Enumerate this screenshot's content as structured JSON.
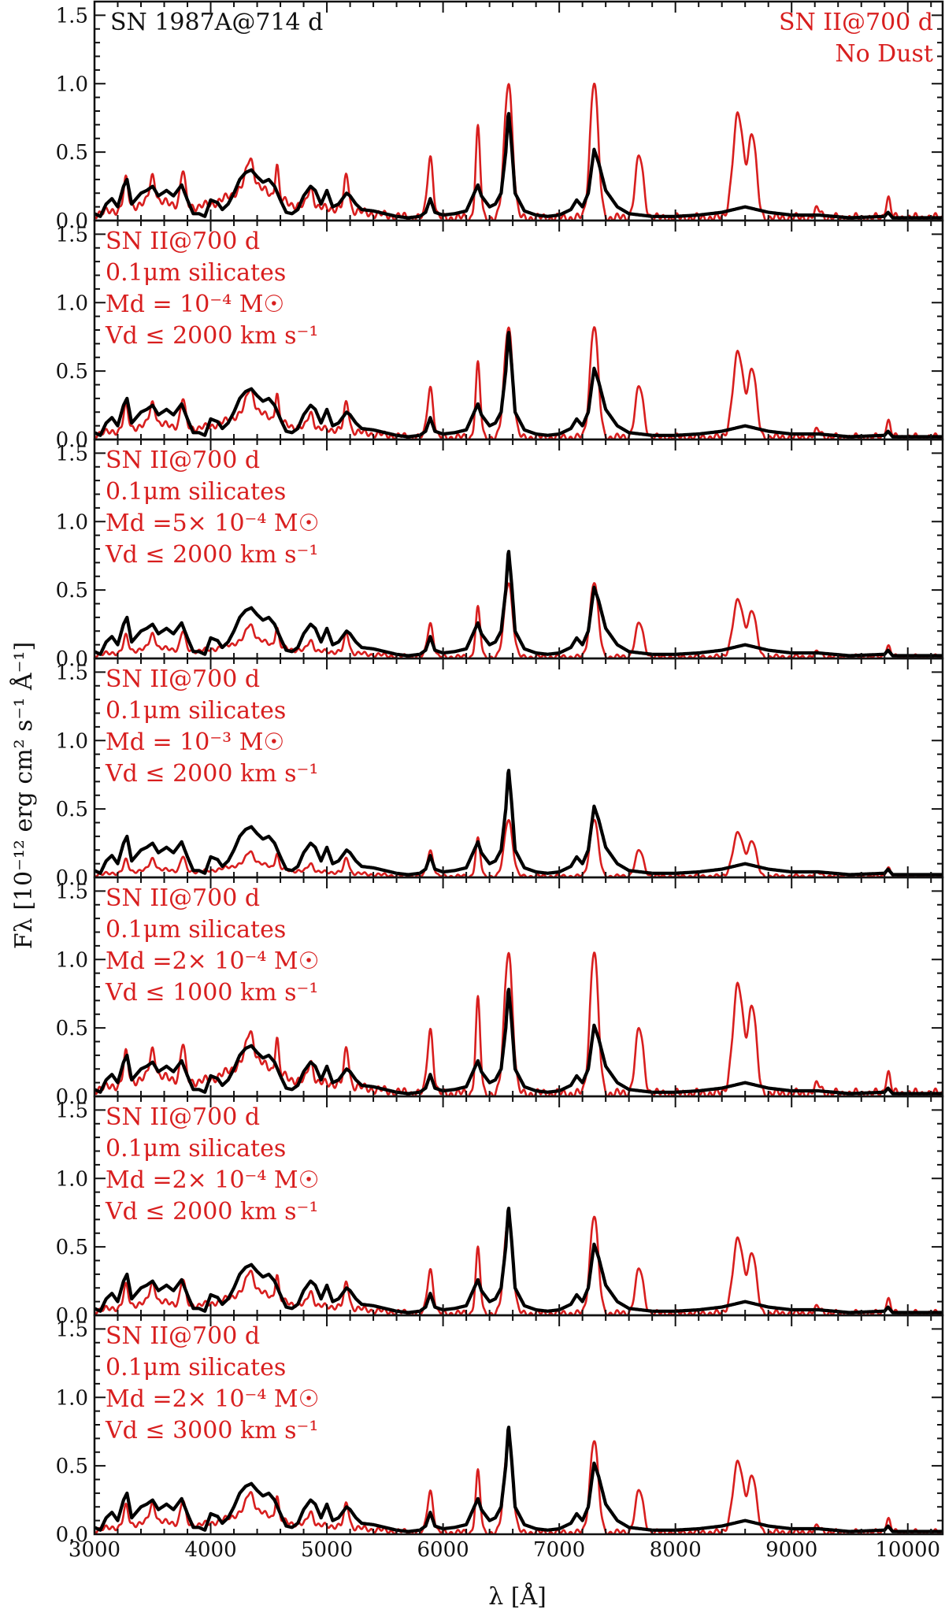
{
  "chart_data": {
    "type": "line",
    "layout": "7 vertically stacked panels sharing the x axis",
    "xlabel": "λ [Å]",
    "ylabel": "Fλ [10⁻¹² erg cm² s⁻¹ Å⁻¹]",
    "xlim": [
      3000,
      10300
    ],
    "ylim": [
      0,
      1.6
    ],
    "x_ticks": [
      3000,
      4000,
      5000,
      6000,
      7000,
      8000,
      9000,
      10000
    ],
    "y_tick_labels": [
      "0.0",
      "0.5",
      "1.0",
      "1.5"
    ],
    "colors": {
      "observed": "#000000",
      "model": "#d81e1e"
    },
    "observed_label": "SN 1987A@714 d",
    "model_baseline": [
      [
        3000,
        0.05
      ],
      [
        3100,
        0.06
      ],
      [
        3200,
        0.08
      ],
      [
        3300,
        0.1
      ],
      [
        3400,
        0.12
      ],
      [
        3500,
        0.13
      ],
      [
        3600,
        0.13
      ],
      [
        3700,
        0.12
      ],
      [
        3800,
        0.11
      ],
      [
        3900,
        0.1
      ],
      [
        4000,
        0.12
      ],
      [
        4100,
        0.15
      ],
      [
        4200,
        0.2
      ],
      [
        4300,
        0.26
      ],
      [
        4400,
        0.25
      ],
      [
        4500,
        0.2
      ],
      [
        4600,
        0.15
      ],
      [
        4700,
        0.12
      ],
      [
        4800,
        0.1
      ],
      [
        4900,
        0.09
      ],
      [
        5000,
        0.09
      ],
      [
        5100,
        0.09
      ],
      [
        5200,
        0.08
      ],
      [
        5300,
        0.06
      ],
      [
        5400,
        0.05
      ],
      [
        5500,
        0.04
      ],
      [
        5600,
        0.03
      ],
      [
        5800,
        0.02
      ],
      [
        6000,
        0.02
      ],
      [
        6500,
        0.02
      ],
      [
        7000,
        0.02
      ],
      [
        8000,
        0.02
      ],
      [
        9000,
        0.02
      ],
      [
        10000,
        0.02
      ],
      [
        10300,
        0.02
      ]
    ],
    "model_lines": [
      {
        "center": 3270,
        "width": 20,
        "amp": 0.2
      },
      {
        "center": 3500,
        "width": 25,
        "amp": 0.2
      },
      {
        "center": 3760,
        "width": 20,
        "amp": 0.25
      },
      {
        "center": 4340,
        "width": 30,
        "amp": 0.2
      },
      {
        "center": 4570,
        "width": 15,
        "amp": 0.25
      },
      {
        "center": 4860,
        "width": 25,
        "amp": 0.15
      },
      {
        "center": 5170,
        "width": 20,
        "amp": 0.25
      },
      {
        "center": 5890,
        "width": 25,
        "amp": 0.45
      },
      {
        "center": 6300,
        "width": 20,
        "amp": 0.65
      },
      {
        "center": 6563,
        "width": 35,
        "amp": 1.0
      },
      {
        "center": 7300,
        "width": 35,
        "amp": 1.0
      },
      {
        "center": 7690,
        "width": 35,
        "amp": 0.45
      },
      {
        "center": 8540,
        "width": 45,
        "amp": 0.75
      },
      {
        "center": 8662,
        "width": 35,
        "amp": 0.6
      },
      {
        "center": 9230,
        "width": 30,
        "amp": 0.06
      },
      {
        "center": 9830,
        "width": 20,
        "amp": 0.15
      }
    ],
    "observed_spectrum": [
      [
        3000,
        0.05
      ],
      [
        3050,
        0.03
      ],
      [
        3100,
        0.12
      ],
      [
        3150,
        0.16
      ],
      [
        3200,
        0.1
      ],
      [
        3250,
        0.25
      ],
      [
        3280,
        0.3
      ],
      [
        3320,
        0.12
      ],
      [
        3400,
        0.2
      ],
      [
        3450,
        0.22
      ],
      [
        3500,
        0.25
      ],
      [
        3550,
        0.18
      ],
      [
        3620,
        0.22
      ],
      [
        3680,
        0.18
      ],
      [
        3750,
        0.26
      ],
      [
        3800,
        0.15
      ],
      [
        3850,
        0.05
      ],
      [
        3900,
        0.05
      ],
      [
        3950,
        0.03
      ],
      [
        4000,
        0.15
      ],
      [
        4060,
        0.13
      ],
      [
        4100,
        0.08
      ],
      [
        4150,
        0.12
      ],
      [
        4200,
        0.2
      ],
      [
        4250,
        0.3
      ],
      [
        4300,
        0.35
      ],
      [
        4350,
        0.37
      ],
      [
        4400,
        0.32
      ],
      [
        4450,
        0.28
      ],
      [
        4500,
        0.3
      ],
      [
        4550,
        0.25
      ],
      [
        4600,
        0.15
      ],
      [
        4650,
        0.06
      ],
      [
        4700,
        0.05
      ],
      [
        4750,
        0.08
      ],
      [
        4800,
        0.18
      ],
      [
        4860,
        0.25
      ],
      [
        4900,
        0.22
      ],
      [
        4950,
        0.12
      ],
      [
        5000,
        0.22
      ],
      [
        5050,
        0.1
      ],
      [
        5100,
        0.12
      ],
      [
        5170,
        0.2
      ],
      [
        5200,
        0.18
      ],
      [
        5250,
        0.12
      ],
      [
        5300,
        0.08
      ],
      [
        5400,
        0.07
      ],
      [
        5500,
        0.05
      ],
      [
        5600,
        0.03
      ],
      [
        5700,
        0.02
      ],
      [
        5800,
        0.03
      ],
      [
        5850,
        0.06
      ],
      [
        5890,
        0.16
      ],
      [
        5930,
        0.06
      ],
      [
        6000,
        0.04
      ],
      [
        6100,
        0.05
      ],
      [
        6200,
        0.07
      ],
      [
        6300,
        0.26
      ],
      [
        6330,
        0.18
      ],
      [
        6400,
        0.1
      ],
      [
        6450,
        0.12
      ],
      [
        6500,
        0.2
      ],
      [
        6540,
        0.5
      ],
      [
        6563,
        0.8
      ],
      [
        6590,
        0.55
      ],
      [
        6620,
        0.2
      ],
      [
        6700,
        0.07
      ],
      [
        6800,
        0.04
      ],
      [
        6900,
        0.03
      ],
      [
        7000,
        0.04
      ],
      [
        7100,
        0.08
      ],
      [
        7150,
        0.15
      ],
      [
        7200,
        0.1
      ],
      [
        7250,
        0.2
      ],
      [
        7300,
        0.52
      ],
      [
        7340,
        0.42
      ],
      [
        7400,
        0.22
      ],
      [
        7500,
        0.1
      ],
      [
        7600,
        0.05
      ],
      [
        7700,
        0.04
      ],
      [
        7800,
        0.03
      ],
      [
        8000,
        0.03
      ],
      [
        8200,
        0.04
      ],
      [
        8400,
        0.06
      ],
      [
        8500,
        0.08
      ],
      [
        8600,
        0.1
      ],
      [
        8700,
        0.08
      ],
      [
        8800,
        0.06
      ],
      [
        9000,
        0.04
      ],
      [
        9230,
        0.04
      ],
      [
        9500,
        0.02
      ],
      [
        9800,
        0.03
      ],
      [
        9830,
        0.06
      ],
      [
        9870,
        0.02
      ],
      [
        10000,
        0.02
      ],
      [
        10300,
        0.02
      ]
    ],
    "panels": [
      {
        "id": "no-dust",
        "labels": [
          {
            "text": "SN 1987A@714 d",
            "color": "black",
            "pos": "top-left"
          },
          {
            "text": "SN II@700 d",
            "color": "red",
            "pos": "top-right"
          },
          {
            "text": "No Dust",
            "color": "red",
            "pos": "top-right"
          }
        ],
        "model_scale": 1.0,
        "series": [
          {
            "name": "SN 1987A@714 d",
            "color": "black"
          },
          {
            "name": "SN II@700 d, No Dust",
            "color": "red"
          }
        ]
      },
      {
        "id": "md-1e-4-v2000",
        "labels": [
          {
            "text": "SN II@700 d",
            "color": "red"
          },
          {
            "text": "0.1μm silicates",
            "color": "red"
          },
          {
            "text": "Md = 10⁻⁴ M☉",
            "color": "red"
          },
          {
            "text": "Vd ≤ 2000 km s⁻¹",
            "color": "red"
          }
        ],
        "model_scale": 0.82,
        "series": [
          {
            "name": "SN 1987A@714 d",
            "color": "black"
          },
          {
            "name": "SN II@700 d, Md=1e-4 Msun, Vd≤2000",
            "color": "red"
          }
        ]
      },
      {
        "id": "md-5e-4-v2000",
        "labels": [
          {
            "text": "SN II@700 d",
            "color": "red"
          },
          {
            "text": "0.1μm silicates",
            "color": "red"
          },
          {
            "text": "Md =5× 10⁻⁴ M☉",
            "color": "red"
          },
          {
            "text": "Vd ≤ 2000 km s⁻¹",
            "color": "red"
          }
        ],
        "model_scale": 0.55,
        "series": [
          {
            "name": "SN 1987A@714 d",
            "color": "black"
          },
          {
            "name": "SN II@700 d, Md=5e-4 Msun, Vd≤2000",
            "color": "red"
          }
        ]
      },
      {
        "id": "md-1e-3-v2000",
        "labels": [
          {
            "text": "SN II@700 d",
            "color": "red"
          },
          {
            "text": "0.1μm silicates",
            "color": "red"
          },
          {
            "text": "Md = 10⁻³ M☉",
            "color": "red"
          },
          {
            "text": "Vd ≤ 2000 km s⁻¹",
            "color": "red"
          }
        ],
        "model_scale": 0.42,
        "series": [
          {
            "name": "SN 1987A@714 d",
            "color": "black"
          },
          {
            "name": "SN II@700 d, Md=1e-3 Msun, Vd≤2000",
            "color": "red"
          }
        ]
      },
      {
        "id": "md-2e-4-v1000",
        "labels": [
          {
            "text": "SN II@700 d",
            "color": "red"
          },
          {
            "text": "0.1μm silicates",
            "color": "red"
          },
          {
            "text": "Md =2× 10⁻⁴ M☉",
            "color": "red"
          },
          {
            "text": "Vd ≤ 1000 km s⁻¹",
            "color": "red"
          }
        ],
        "model_scale": 1.05,
        "series": [
          {
            "name": "SN 1987A@714 d",
            "color": "black"
          },
          {
            "name": "SN II@700 d, Md=2e-4 Msun, Vd≤1000",
            "color": "red"
          }
        ]
      },
      {
        "id": "md-2e-4-v2000",
        "labels": [
          {
            "text": "SN II@700 d",
            "color": "red"
          },
          {
            "text": "0.1μm silicates",
            "color": "red"
          },
          {
            "text": "Md =2× 10⁻⁴ M☉",
            "color": "red"
          },
          {
            "text": "Vd ≤ 2000 km s⁻¹",
            "color": "red"
          }
        ],
        "model_scale": 0.72,
        "series": [
          {
            "name": "SN 1987A@714 d",
            "color": "black"
          },
          {
            "name": "SN II@700 d, Md=2e-4 Msun, Vd≤2000",
            "color": "red"
          }
        ]
      },
      {
        "id": "md-2e-4-v3000",
        "labels": [
          {
            "text": "SN II@700 d",
            "color": "red"
          },
          {
            "text": "0.1μm silicates",
            "color": "red"
          },
          {
            "text": "Md =2× 10⁻⁴ M☉",
            "color": "red"
          },
          {
            "text": "Vd ≤ 3000 km s⁻¹",
            "color": "red"
          }
        ],
        "model_scale": 0.68,
        "series": [
          {
            "name": "SN 1987A@714 d",
            "color": "black"
          },
          {
            "name": "SN II@700 d, Md=2e-4 Msun, Vd≤3000",
            "color": "red"
          }
        ]
      }
    ]
  }
}
